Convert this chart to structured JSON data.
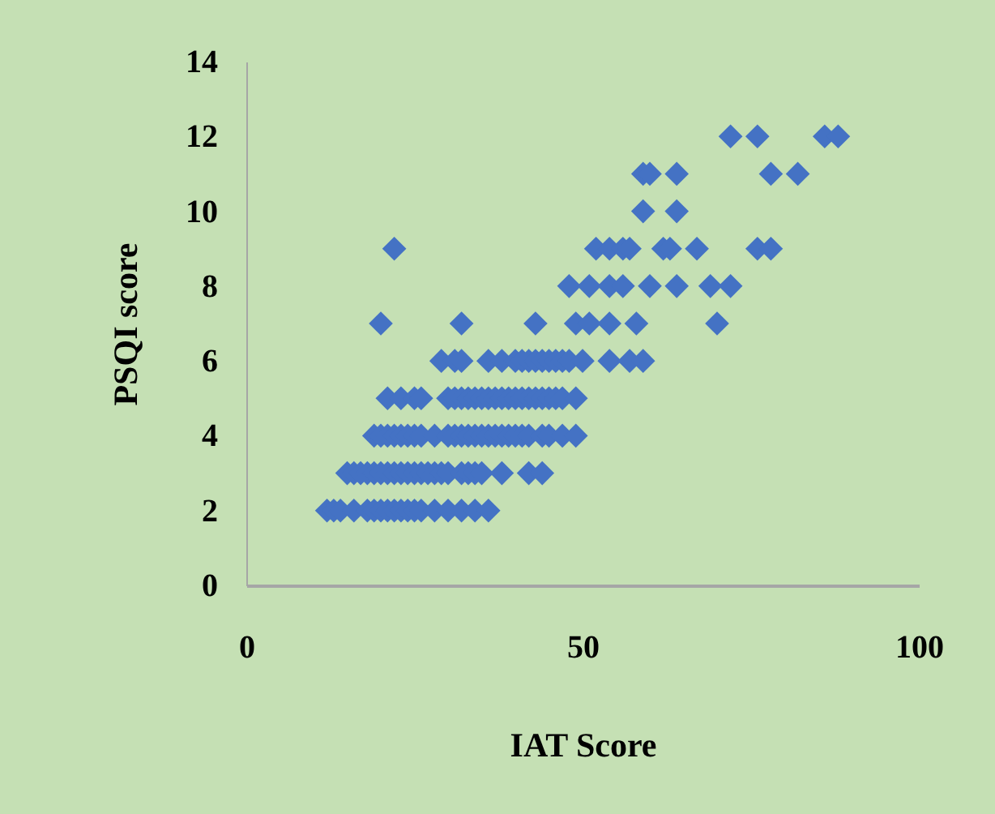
{
  "chart_data": {
    "type": "scatter",
    "xlabel": "IAT Score",
    "ylabel": "PSQI score",
    "xlim": [
      0,
      100
    ],
    "xticks": [
      0,
      50,
      100
    ],
    "ylim": [
      0,
      14
    ],
    "yticks": [
      0,
      2,
      4,
      6,
      8,
      10,
      12,
      14
    ],
    "grid": false,
    "marker": "diamond",
    "x": [
      12,
      13,
      14,
      16,
      18,
      19,
      20,
      21,
      22,
      23,
      24,
      25,
      26,
      28,
      30,
      32,
      34,
      36,
      15,
      16,
      17,
      18,
      19,
      20,
      21,
      22,
      23,
      24,
      25,
      26,
      27,
      28,
      29,
      30,
      32,
      33,
      34,
      35,
      38,
      42,
      44,
      19,
      20,
      21,
      22,
      23,
      24,
      25,
      26,
      28,
      30,
      31,
      32,
      33,
      34,
      35,
      36,
      37,
      38,
      39,
      40,
      41,
      42,
      44,
      45,
      47,
      49,
      21,
      23,
      25,
      26,
      30,
      31,
      32,
      33,
      34,
      35,
      36,
      37,
      38,
      39,
      40,
      41,
      42,
      43,
      44,
      45,
      46,
      47,
      49,
      29,
      31,
      32,
      36,
      38,
      40,
      41,
      42,
      43,
      44,
      45,
      46,
      47,
      48,
      50,
      54,
      57,
      59,
      20,
      32,
      43,
      49,
      51,
      54,
      58,
      70,
      48,
      51,
      54,
      56,
      60,
      64,
      69,
      72,
      22,
      52,
      54,
      56,
      57,
      62,
      63,
      67,
      76,
      78,
      59,
      64,
      59,
      60,
      64,
      78,
      82,
      72,
      76,
      86,
      88
    ],
    "series": [
      {
        "color": "#4472c4",
        "values": [
          2,
          2,
          2,
          2,
          2,
          2,
          2,
          2,
          2,
          2,
          2,
          2,
          2,
          2,
          2,
          2,
          2,
          2,
          3,
          3,
          3,
          3,
          3,
          3,
          3,
          3,
          3,
          3,
          3,
          3,
          3,
          3,
          3,
          3,
          3,
          3,
          3,
          3,
          3,
          3,
          3,
          4,
          4,
          4,
          4,
          4,
          4,
          4,
          4,
          4,
          4,
          4,
          4,
          4,
          4,
          4,
          4,
          4,
          4,
          4,
          4,
          4,
          4,
          4,
          4,
          4,
          4,
          5,
          5,
          5,
          5,
          5,
          5,
          5,
          5,
          5,
          5,
          5,
          5,
          5,
          5,
          5,
          5,
          5,
          5,
          5,
          5,
          5,
          5,
          5,
          6,
          6,
          6,
          6,
          6,
          6,
          6,
          6,
          6,
          6,
          6,
          6,
          6,
          6,
          6,
          6,
          6,
          6,
          7,
          7,
          7,
          7,
          7,
          7,
          7,
          7,
          8,
          8,
          8,
          8,
          8,
          8,
          8,
          8,
          9,
          9,
          9,
          9,
          9,
          9,
          9,
          9,
          9,
          9,
          10,
          10,
          11,
          11,
          11,
          11,
          11,
          12,
          12,
          12,
          12
        ]
      }
    ]
  }
}
